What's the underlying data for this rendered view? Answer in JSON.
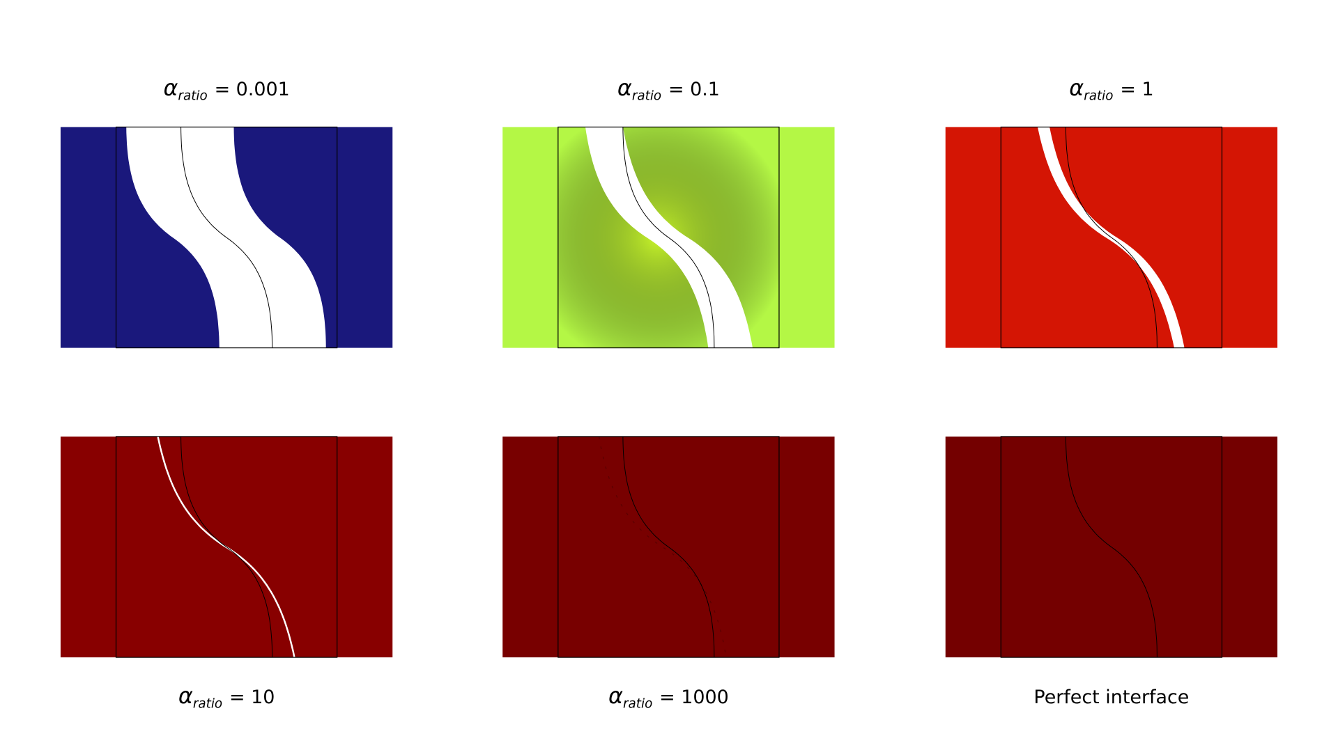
{
  "panels": [
    {
      "symbol": "α",
      "subscript": "ratio",
      "text": "= 0.001",
      "color": "#1a187c"
    },
    {
      "symbol": "α",
      "subscript": "ratio",
      "text": "= 0.1",
      "color": "#b4f745"
    },
    {
      "symbol": "α",
      "subscript": "ratio",
      "text": "= 1",
      "color": "#d41504"
    },
    {
      "symbol": "α",
      "subscript": "ratio",
      "text": "= 10",
      "color": "#880000"
    },
    {
      "symbol": "α",
      "subscript": "ratio",
      "text": "= 1000",
      "color": "#780000"
    },
    {
      "text": "Perfect interface",
      "color": "#740000"
    }
  ]
}
